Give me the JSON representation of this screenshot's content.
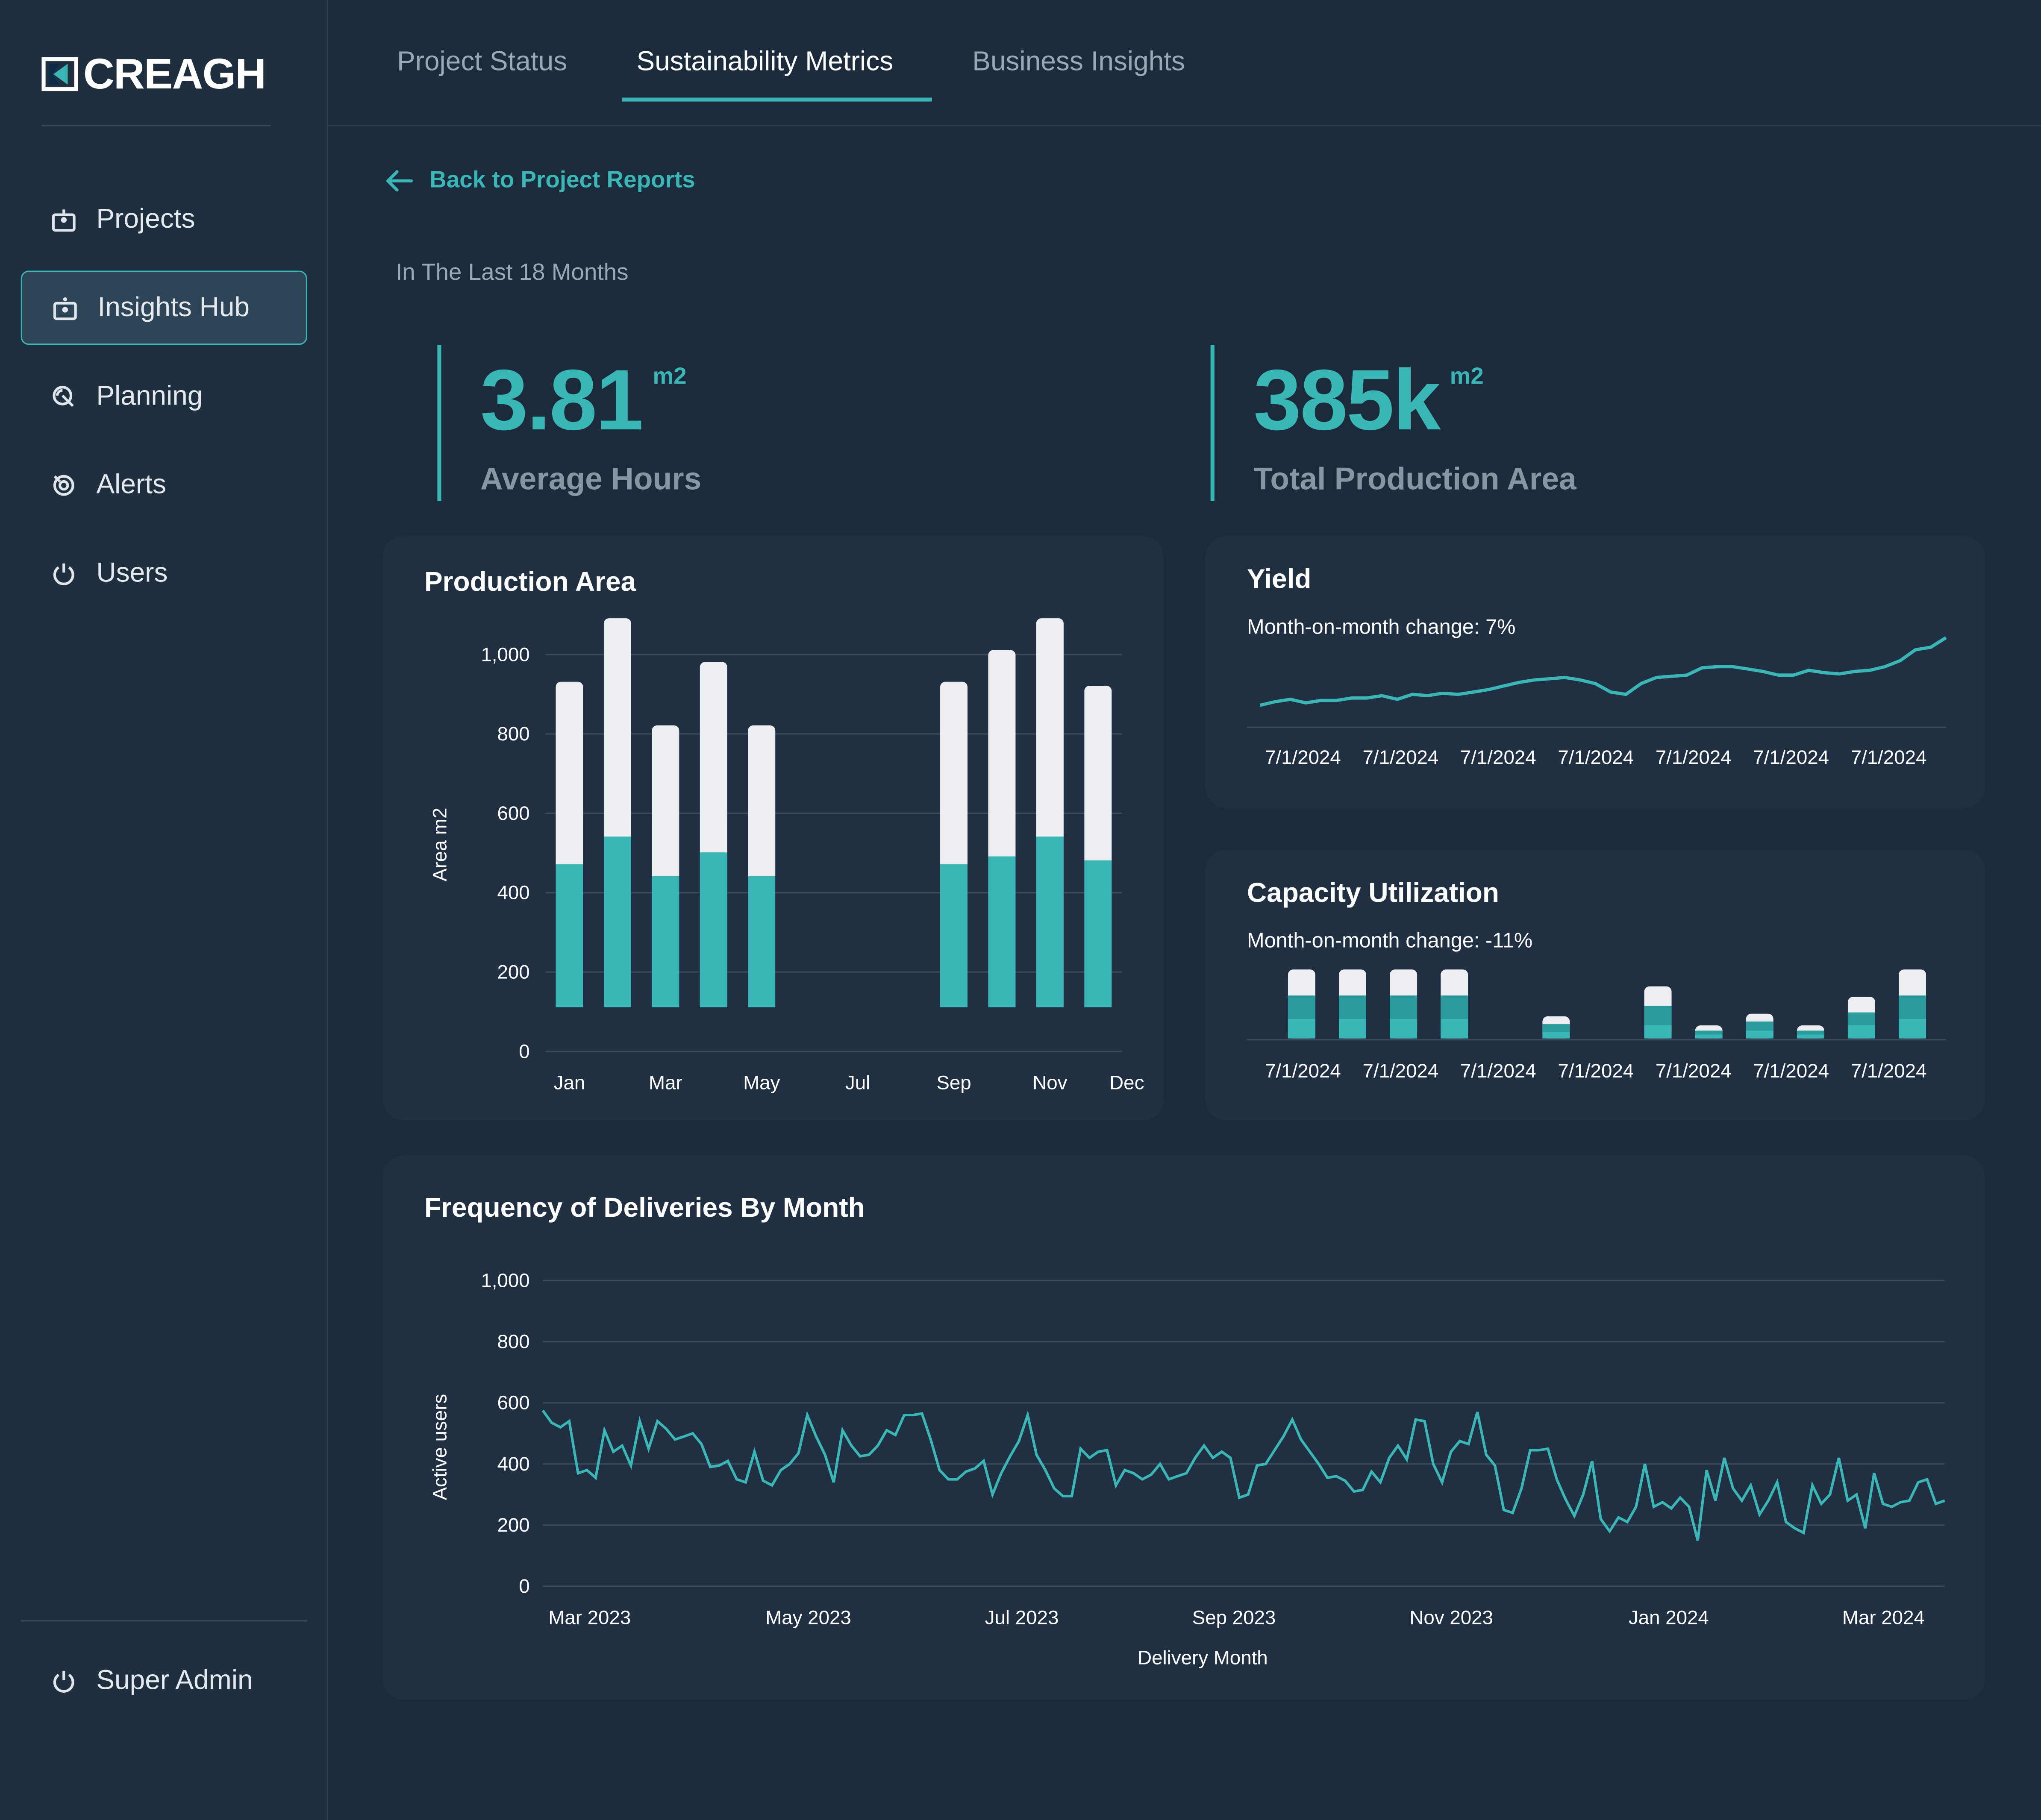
{
  "brand": {
    "name": "CREAGH"
  },
  "colors": {
    "accent": "#3bb6b6",
    "background": "#1c2b3b",
    "card": "#203042",
    "bar_light": "#eceef2"
  },
  "sidebar": {
    "items": [
      {
        "label": "Projects",
        "icon": "projects-icon"
      },
      {
        "label": "Insights Hub",
        "icon": "insights-icon",
        "active": true
      },
      {
        "label": "Planning",
        "icon": "planning-icon"
      },
      {
        "label": "Alerts",
        "icon": "alerts-icon"
      },
      {
        "label": "Users",
        "icon": "power-icon"
      }
    ],
    "footer": {
      "label": "Super Admin",
      "icon": "power-icon"
    }
  },
  "tabs": [
    {
      "label": "Project Status"
    },
    {
      "label": "Sustainability Metrics",
      "active": true
    },
    {
      "label": "Business Insights"
    }
  ],
  "back_link": "Back to Project Reports",
  "period": "In The Last 18 Months",
  "kpis": [
    {
      "value": "3.81",
      "unit": "m2",
      "label": "Average Hours"
    },
    {
      "value": "385k",
      "unit": "m2",
      "label": "Total Production Area"
    }
  ],
  "chart_data": [
    {
      "id": "production-area",
      "type": "bar",
      "title": "Production Area",
      "ylabel": "Area m2",
      "ylim": [
        0,
        1000
      ],
      "yticks": [
        "0",
        "200",
        "400",
        "600",
        "800",
        "1,000"
      ],
      "ytick_values": [
        0,
        200,
        400,
        600,
        800,
        1000
      ],
      "categories": [
        "Jan",
        "Feb",
        "Mar",
        "Apr",
        "May",
        "Jun",
        "Jul",
        "Aug",
        "Sep",
        "Oct",
        "Nov",
        "Dec"
      ],
      "xtick_labels": [
        "Jan",
        "Mar",
        "May",
        "Jul",
        "Sep",
        "Nov",
        "Dec"
      ],
      "stacked": true,
      "series": [
        {
          "values": [
            360,
            430,
            330,
            390,
            330,
            null,
            null,
            null,
            360,
            380,
            430,
            370
          ]
        },
        {
          "values": [
            460,
            550,
            380,
            480,
            380,
            null,
            null,
            null,
            460,
            520,
            550,
            440
          ]
        }
      ]
    },
    {
      "id": "yield",
      "type": "line",
      "title": "Yield",
      "subtitle": "Month-on-month change: 7%",
      "xtick_labels": [
        "7/1/2024",
        "7/1/2024",
        "7/1/2024",
        "7/1/2024",
        "7/1/2024",
        "7/1/2024",
        "7/1/2024"
      ],
      "values": [
        10,
        13,
        15,
        12,
        14,
        14,
        16,
        16,
        18,
        15,
        19,
        18,
        20,
        19,
        21,
        23,
        26,
        29,
        31,
        32,
        33,
        31,
        28,
        21,
        19,
        28,
        33,
        34,
        35,
        41,
        42,
        42,
        40,
        38,
        35,
        35,
        39,
        37,
        36,
        38,
        39,
        42,
        47,
        56,
        58,
        66
      ]
    },
    {
      "id": "capacity-utilization",
      "type": "bar",
      "title": "Capacity Utilization",
      "subtitle": "Month-on-month change: -11%",
      "stacked": true,
      "xtick_labels": [
        "7/1/2024",
        "7/1/2024",
        "7/1/2024",
        "7/1/2024",
        "7/1/2024",
        "7/1/2024",
        "7/1/2024"
      ],
      "categories": [
        "1",
        "2",
        "3",
        "4",
        "5",
        "6",
        "7",
        "8",
        "9",
        "10",
        "11",
        "12",
        "13"
      ],
      "series": [
        {
          "values": [
            20,
            20,
            20,
            20,
            0,
            6,
            0,
            15,
            4,
            6,
            4,
            12,
            20
          ]
        },
        {
          "values": [
            18,
            18,
            18,
            18,
            0,
            6,
            0,
            15,
            3,
            7,
            3,
            10,
            18
          ]
        },
        {
          "values": [
            15,
            15,
            15,
            15,
            0,
            5,
            0,
            10,
            3,
            6,
            3,
            10,
            15
          ]
        }
      ]
    },
    {
      "id": "deliveries",
      "type": "line",
      "title": "Frequency of Deliveries By Month",
      "xlabel": "Delivery Month",
      "ylabel": "Active users",
      "ylim": [
        0,
        1000
      ],
      "yticks": [
        "0",
        "200",
        "400",
        "600",
        "800",
        "1,000"
      ],
      "ytick_values": [
        0,
        200,
        400,
        600,
        800,
        1000
      ],
      "xtick_labels": [
        "Mar 2023",
        "May 2023",
        "Jul 2023",
        "Sep 2023",
        "Nov 2023",
        "Jan 2024",
        "Mar 2024"
      ],
      "values": [
        575,
        535,
        520,
        540,
        370,
        380,
        355,
        510,
        440,
        460,
        395,
        540,
        450,
        540,
        515,
        480,
        490,
        500,
        465,
        390,
        395,
        410,
        350,
        340,
        440,
        345,
        330,
        380,
        400,
        435,
        560,
        490,
        430,
        340,
        510,
        460,
        425,
        430,
        460,
        510,
        495,
        560,
        560,
        565,
        480,
        380,
        350,
        350,
        375,
        385,
        410,
        300,
        370,
        425,
        475,
        560,
        430,
        380,
        320,
        295,
        295,
        450,
        420,
        440,
        445,
        330,
        380,
        370,
        350,
        365,
        400,
        350,
        360,
        370,
        420,
        460,
        420,
        440,
        420,
        290,
        300,
        395,
        400,
        445,
        490,
        545,
        480,
        440,
        400,
        355,
        360,
        345,
        310,
        315,
        375,
        340,
        420,
        460,
        415,
        545,
        540,
        400,
        340,
        440,
        475,
        465,
        570,
        430,
        395,
        250,
        240,
        320,
        445,
        445,
        450,
        350,
        285,
        230,
        300,
        410,
        220,
        180,
        225,
        210,
        260,
        400,
        260,
        275,
        255,
        290,
        260,
        150,
        380,
        280,
        420,
        320,
        280,
        330,
        235,
        280,
        340,
        210,
        190,
        175,
        330,
        270,
        300,
        420,
        280,
        300,
        190,
        370,
        270,
        260,
        275,
        280,
        340,
        350,
        270,
        280
      ]
    }
  ]
}
